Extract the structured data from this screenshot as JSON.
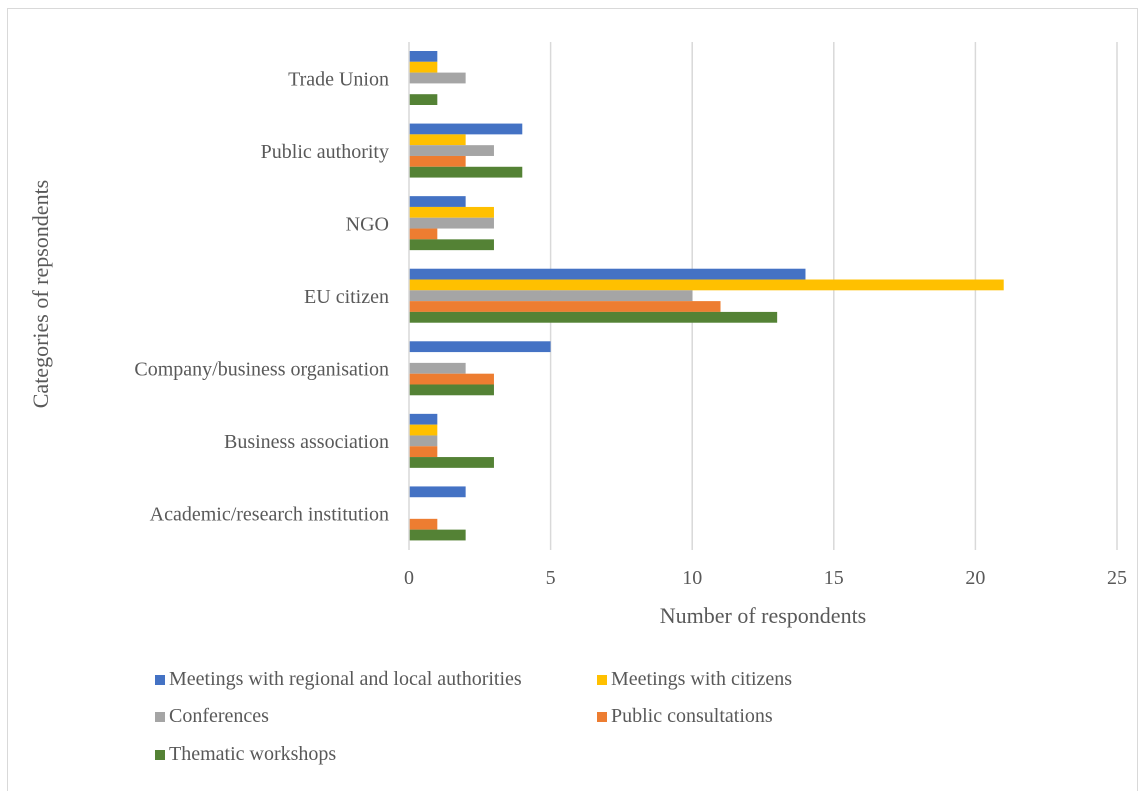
{
  "chart_data": {
    "type": "bar",
    "orientation": "horizontal",
    "title": "",
    "xlabel": "Number of respondents",
    "ylabel": "Categories of repsondents",
    "xlim": [
      0,
      25
    ],
    "x_ticks": [
      "0",
      "5",
      "10",
      "15",
      "20",
      "25"
    ],
    "grid": "vertical gridlines",
    "legend_position": "bottom",
    "categories": [
      "Trade Union",
      "Public authority",
      "NGO",
      "EU citizen",
      "Company/business organisation",
      "Business association",
      "Academic/research institution"
    ],
    "series": [
      {
        "name": "Meetings with regional and local authorities",
        "color": "#4472c4",
        "values": [
          1,
          4,
          2,
          14,
          5,
          1,
          2
        ]
      },
      {
        "name": "Meetings with citizens",
        "color": "#ffc000",
        "values": [
          1,
          2,
          3,
          21,
          0,
          1,
          0
        ]
      },
      {
        "name": "Conferences",
        "color": "#a5a5a5",
        "values": [
          2,
          3,
          3,
          10,
          2,
          1,
          0
        ]
      },
      {
        "name": "Public consultations",
        "color": "#ed7d31",
        "values": [
          0,
          2,
          1,
          11,
          3,
          1,
          1
        ]
      },
      {
        "name": "Thematic workshops",
        "color": "#548235",
        "values": [
          1,
          4,
          3,
          13,
          3,
          3,
          2
        ]
      }
    ]
  }
}
